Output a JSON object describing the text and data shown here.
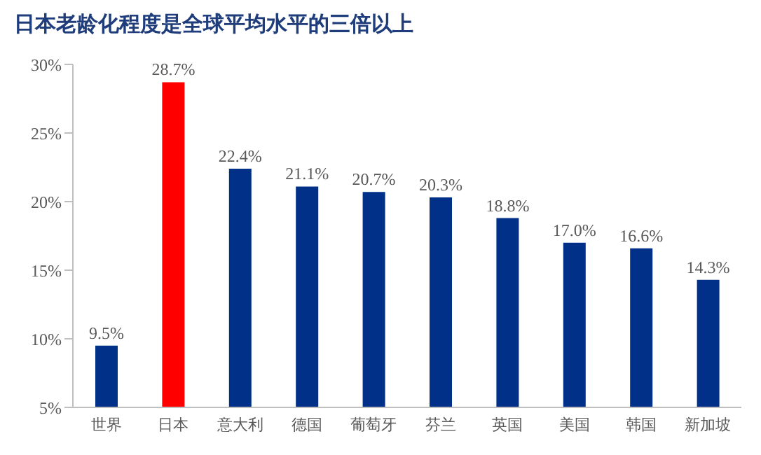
{
  "chart_data": {
    "type": "bar",
    "title": "日本老龄化程度是全球平均水平的三倍以上",
    "categories": [
      "世界",
      "日本",
      "意大利",
      "德国",
      "葡萄牙",
      "芬兰",
      "英国",
      "美国",
      "韩国",
      "新加坡"
    ],
    "values": [
      9.5,
      28.7,
      22.4,
      21.1,
      20.7,
      20.3,
      18.8,
      17.0,
      16.6,
      14.3
    ],
    "colors": [
      "#003087",
      "#ff0000",
      "#003087",
      "#003087",
      "#003087",
      "#003087",
      "#003087",
      "#003087",
      "#003087",
      "#003087"
    ],
    "value_labels": [
      "9.5%",
      "28.7%",
      "22.4%",
      "21.1%",
      "20.7%",
      "20.3%",
      "18.8%",
      "17.0%",
      "16.6%",
      "14.3%"
    ],
    "ylim": [
      5,
      30
    ],
    "yticks": [
      {
        "value": 5,
        "label": "5%"
      },
      {
        "value": 10,
        "label": "10%"
      },
      {
        "value": 15,
        "label": "15%"
      },
      {
        "value": 20,
        "label": "20%"
      },
      {
        "value": 25,
        "label": "25%"
      },
      {
        "value": 30,
        "label": "30%"
      }
    ],
    "grid": false,
    "legend": false
  }
}
